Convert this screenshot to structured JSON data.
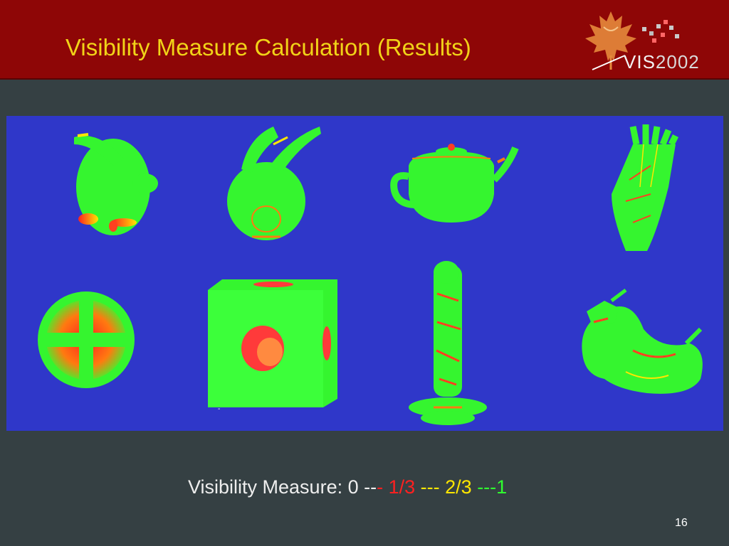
{
  "slide": {
    "title": "Visibility Measure Calculation (Results)",
    "page_number": "16"
  },
  "logo": {
    "text_vis": "VIS",
    "text_year": "2002",
    "icon": "maple-leaf-icon"
  },
  "figure": {
    "stray_mark": "-"
  },
  "legend": {
    "label": "Visibility Measure: ",
    "v0": "0",
    "sep1a": " --",
    "sep1b": "- ",
    "v1": "1/3",
    "sep2": " --- ",
    "v2": "2/3",
    "sep3": " ---",
    "v3": "1"
  },
  "colors": {
    "background": "#354043",
    "header": "#8e0606",
    "title": "#f1d318",
    "figure_bg": "#2f37c9",
    "visible": "#2fff2f",
    "mid": "#ffe600",
    "occluded": "#ff2020"
  }
}
